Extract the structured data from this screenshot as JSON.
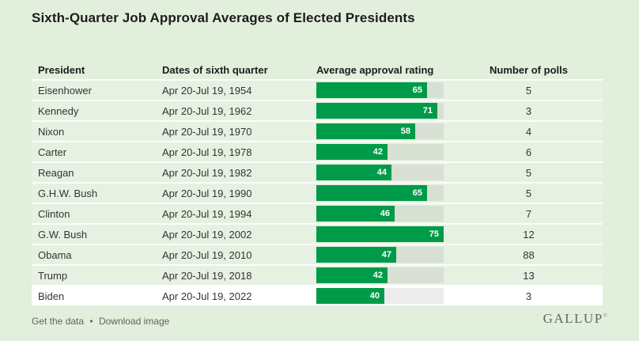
{
  "page": {
    "title": "Sixth-Quarter Job Approval Averages of Elected Presidents",
    "background": "#e2efdc"
  },
  "table": {
    "headers": {
      "president": "President",
      "dates": "Dates of sixth quarter",
      "approval": "Average approval rating",
      "polls": "Number of polls"
    },
    "rows": [
      {
        "president": "Eisenhower",
        "dates": "Apr 20-Jul 19, 1954",
        "approval": 65,
        "polls": 5,
        "highlight": false
      },
      {
        "president": "Kennedy",
        "dates": "Apr 20-Jul 19, 1962",
        "approval": 71,
        "polls": 3,
        "highlight": false
      },
      {
        "president": "Nixon",
        "dates": "Apr 20-Jul 19, 1970",
        "approval": 58,
        "polls": 4,
        "highlight": false
      },
      {
        "president": "Carter",
        "dates": "Apr 20-Jul 19, 1978",
        "approval": 42,
        "polls": 6,
        "highlight": false
      },
      {
        "president": "Reagan",
        "dates": "Apr 20-Jul 19, 1982",
        "approval": 44,
        "polls": 5,
        "highlight": false
      },
      {
        "president": "G.H.W. Bush",
        "dates": "Apr 20-Jul 19, 1990",
        "approval": 65,
        "polls": 5,
        "highlight": false
      },
      {
        "president": "Clinton",
        "dates": "Apr 20-Jul 19, 1994",
        "approval": 46,
        "polls": 7,
        "highlight": false
      },
      {
        "president": "G.W. Bush",
        "dates": "Apr 20-Jul 19, 2002",
        "approval": 75,
        "polls": 12,
        "highlight": false
      },
      {
        "president": "Obama",
        "dates": "Apr 20-Jul 19, 2010",
        "approval": 47,
        "polls": 88,
        "highlight": false
      },
      {
        "president": "Trump",
        "dates": "Apr 20-Jul 19, 2018",
        "approval": 42,
        "polls": 13,
        "highlight": false
      },
      {
        "president": "Biden",
        "dates": "Apr 20-Jul 19, 2022",
        "approval": 40,
        "polls": 3,
        "highlight": true
      }
    ]
  },
  "footer": {
    "links": [
      "Get the data",
      "Download image"
    ],
    "separator": "•"
  },
  "brand": {
    "logo": "GALLUP",
    "registered": "®"
  },
  "colors": {
    "bar_green": "#009b48",
    "bar_track": "#d8dfd3",
    "bar_track_highlight": "#ececec",
    "row_bg": "#e7f1e2",
    "highlight_row_bg": "#ffffff",
    "page_bg": "#e2efdc",
    "title_text": "#1c1c1c",
    "footer_text": "#5d675d"
  },
  "chart_data": {
    "type": "bar",
    "orientation": "horizontal",
    "title": "Sixth-Quarter Job Approval Averages of Elected Presidents",
    "categories": [
      "Eisenhower",
      "Kennedy",
      "Nixon",
      "Carter",
      "Reagan",
      "G.H.W. Bush",
      "Clinton",
      "G.W. Bush",
      "Obama",
      "Trump",
      "Biden"
    ],
    "category_dates": [
      "Apr 20-Jul 19, 1954",
      "Apr 20-Jul 19, 1962",
      "Apr 20-Jul 19, 1970",
      "Apr 20-Jul 19, 1978",
      "Apr 20-Jul 19, 1982",
      "Apr 20-Jul 19, 1990",
      "Apr 20-Jul 19, 1994",
      "Apr 20-Jul 19, 2002",
      "Apr 20-Jul 19, 2010",
      "Apr 20-Jul 19, 2018",
      "Apr 20-Jul 19, 2022"
    ],
    "series": [
      {
        "name": "Average approval rating",
        "values": [
          65,
          71,
          58,
          42,
          44,
          65,
          46,
          75,
          47,
          42,
          40
        ]
      },
      {
        "name": "Number of polls",
        "values": [
          5,
          3,
          4,
          6,
          5,
          5,
          7,
          12,
          88,
          13,
          3
        ]
      }
    ],
    "value_axis_range": [
      0,
      76
    ],
    "data_labels": "inside-end",
    "bar_color": "#009b48",
    "highlighted_category": "Biden",
    "grid": false,
    "legend": "none"
  }
}
